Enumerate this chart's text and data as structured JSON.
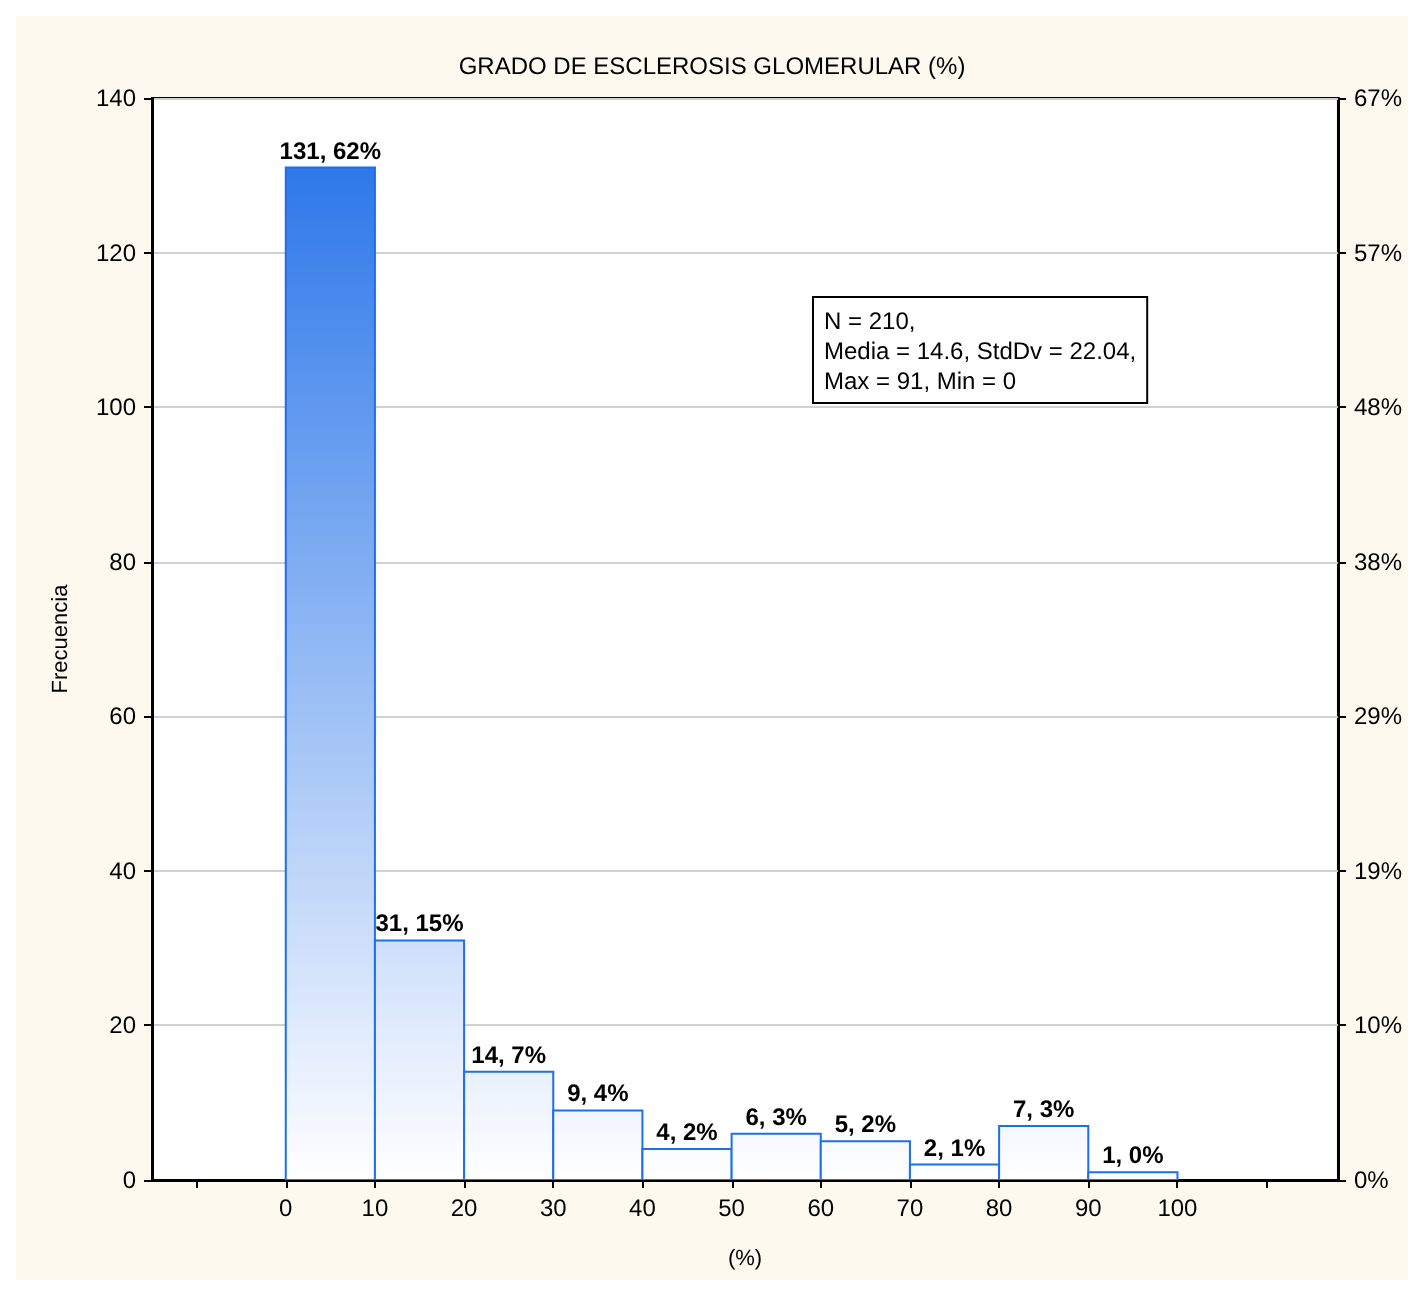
{
  "chart_data": {
    "type": "histogram",
    "title": "GRADO DE ESCLEROSIS GLOMERULAR (%)",
    "xlabel": "(%)",
    "ylabel": "Frecuencia",
    "bins": [
      0,
      10,
      20,
      30,
      40,
      50,
      60,
      70,
      80,
      90,
      100
    ],
    "values": [
      131,
      31,
      14,
      9,
      4,
      6,
      5,
      2,
      7,
      1
    ],
    "value_labels": [
      "131, 62%",
      "31, 15%",
      "14, 7%",
      "9, 4%",
      "4, 2%",
      "6, 3%",
      "5, 2%",
      "2, 1%",
      "7, 3%",
      "1, 0%"
    ],
    "color": "#1f6fe8",
    "xlim": [
      -15,
      118
    ],
    "xticks": [
      {
        "value": -10,
        "label": null
      },
      0,
      10,
      20,
      30,
      40,
      50,
      60,
      70,
      80,
      90,
      100,
      {
        "value": 110,
        "label": null
      }
    ],
    "ylim": [
      0,
      140
    ],
    "yticks": [
      0,
      20,
      40,
      60,
      80,
      100,
      120,
      140
    ],
    "y2lim": [
      0,
      66.67
    ],
    "y2ticks": [
      {
        "value": 0,
        "label": "0%"
      },
      {
        "value": 9.52,
        "label": "10%"
      },
      {
        "value": 19.05,
        "label": "19%"
      },
      {
        "value": 28.57,
        "label": "29%"
      },
      {
        "value": 38.1,
        "label": "38%"
      },
      {
        "value": 47.62,
        "label": "48%"
      },
      {
        "value": 57.14,
        "label": "57%"
      },
      {
        "value": 66.67,
        "label": "67%"
      }
    ],
    "grid": "y",
    "annotations": [
      "N = 210,\nMedia = 14.6, StdDv = 22.04,\nMax = 91, Min = 0"
    ]
  }
}
